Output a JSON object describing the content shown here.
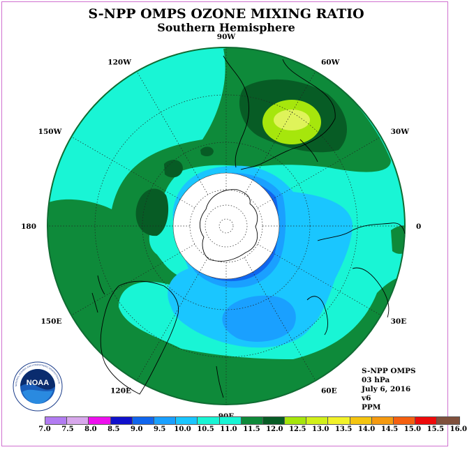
{
  "title": "S-NPP OMPS OZONE MIXING RATIO",
  "subtitle": "Southern Hemisphere",
  "map": {
    "longitude_labels": [
      {
        "text": "90W",
        "lon": -90
      },
      {
        "text": "60W",
        "lon": -60
      },
      {
        "text": "30W",
        "lon": -30
      },
      {
        "text": "0",
        "lon": 0
      },
      {
        "text": "30E",
        "lon": 30
      },
      {
        "text": "60E",
        "lon": 60
      },
      {
        "text": "90E",
        "lon": 90
      },
      {
        "text": "120E",
        "lon": 120
      },
      {
        "text": "150E",
        "lon": 150
      },
      {
        "text": "180",
        "lon": 180
      },
      {
        "text": "150W",
        "lon": -150
      },
      {
        "text": "120W",
        "lon": -120
      }
    ],
    "projection": "south polar stereographic",
    "no_data_region": "polar night (white disk)",
    "dominant_colors": {
      "background_field": "#19f5d5",
      "mid_band": "#0e8a3a",
      "dark_band": "#075c25",
      "high_center": "#a6e60c",
      "high_core": "#dff35a",
      "low_field": "#1ac6ff",
      "lower_field": "#1aa0ff",
      "lowest_field": "#1066ee",
      "minimum_ring": "#1010cc"
    }
  },
  "info": {
    "line1": "S-NPP OMPS",
    "line2": "03 hPa",
    "line3": "July 6, 2016",
    "line4": "v6",
    "line5": "PPM"
  },
  "colorbar": {
    "ticks": [
      "7.0",
      "7.5",
      "8.0",
      "8.5",
      "9.0",
      "9.5",
      "10.0",
      "10.5",
      "11.0",
      "11.5",
      "12.0",
      "12.5",
      "13.0",
      "13.5",
      "14.0",
      "14.5",
      "15.0",
      "15.5",
      "16.0"
    ],
    "colors": [
      "#b27cf2",
      "#d8a8ec",
      "#ee10ee",
      "#1010cc",
      "#1066ee",
      "#1aa0ff",
      "#1ac6ff",
      "#19f5d5",
      "#19f5d5",
      "#0e8a3a",
      "#075c25",
      "#a6e60c",
      "#d2f01a",
      "#f2f22a",
      "#f5c510",
      "#f59a10",
      "#f56010",
      "#ee0a0a",
      "#80503c"
    ]
  },
  "logo": {
    "text": "NOAA",
    "ring_text": "NATIONAL OCEANIC AND ATMOSPHERIC ADMINISTRATION"
  }
}
